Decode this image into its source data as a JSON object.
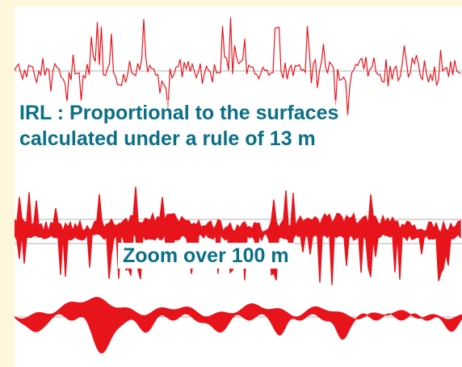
{
  "captions": {
    "irl_line1": "IRL : Proportional to the surfaces",
    "irl_line2": "calculated under a rule of 13 m",
    "zoom": "Zoom over 100 m"
  },
  "colors": {
    "background": "#fff7dc",
    "panel": "#ffffff",
    "profile": "#e8141c",
    "baseline": "#b0b0b0",
    "caption_text": "#0b6f86"
  },
  "profiles": [
    {
      "id": "raw-profile",
      "style": "line",
      "description_key": "full-length road profile"
    },
    {
      "id": "irl-surfaces-profile",
      "style": "spiky-fill"
    },
    {
      "id": "zoom-100m-profile",
      "style": "smooth-fill"
    }
  ]
}
